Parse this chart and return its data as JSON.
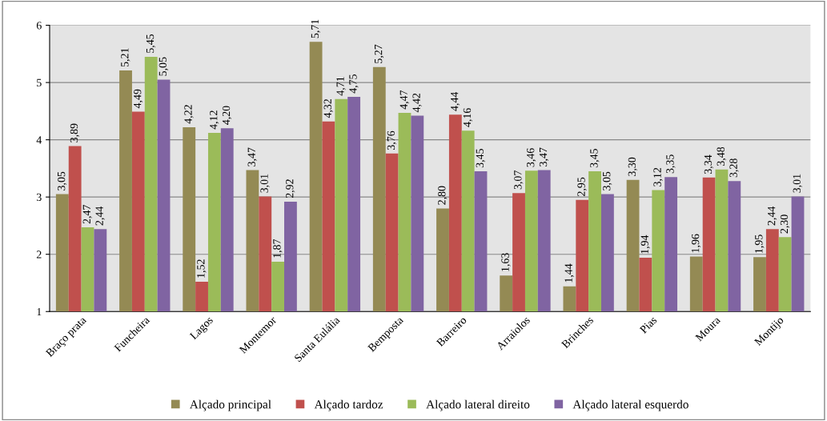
{
  "chart_data": {
    "type": "bar",
    "categories": [
      "Braço prata",
      "Funcheira",
      "Lagos",
      "Montemor",
      "Santa Eulália",
      "Bemposta",
      "Barreiro",
      "Arraiolos",
      "Brinches",
      "Pias",
      "Moura",
      "Montijo"
    ],
    "series": [
      {
        "name": "Alçado principal",
        "color": "#948a54",
        "values": [
          3.05,
          5.21,
          4.22,
          3.47,
          5.71,
          5.27,
          2.8,
          1.63,
          1.44,
          3.3,
          1.96,
          1.95
        ],
        "value_labels": [
          "3,05",
          "5,21",
          "4,22",
          "3,47",
          "5,71",
          "5,27",
          "2,80",
          "1,63",
          "1,44",
          "3,30",
          "1,96",
          "1,95"
        ]
      },
      {
        "name": "Alçado tardoz",
        "color": "#c0504d",
        "values": [
          3.89,
          4.49,
          1.52,
          3.01,
          4.32,
          3.76,
          4.44,
          3.07,
          2.95,
          1.94,
          3.34,
          2.44
        ],
        "value_labels": [
          "3,89",
          "4,49",
          "1,52",
          "3,01",
          "4,32",
          "3,76",
          "4,44",
          "3,07",
          "2,95",
          "1,94",
          "3,34",
          "2,44"
        ]
      },
      {
        "name": "Alçado lateral direito",
        "color": "#9bbb59",
        "values": [
          2.47,
          5.45,
          4.12,
          1.87,
          4.71,
          4.47,
          4.16,
          3.46,
          3.45,
          3.12,
          3.48,
          2.3
        ],
        "value_labels": [
          "2,47",
          "5,45",
          "4,12",
          "1,87",
          "4,71",
          "4,47",
          "4,16",
          "3,46",
          "3,45",
          "3,12",
          "3,48",
          "2,30"
        ]
      },
      {
        "name": "Alçado lateral esquerdo",
        "color": "#8064a2",
        "values": [
          2.44,
          5.05,
          4.2,
          2.92,
          4.75,
          4.42,
          3.45,
          3.47,
          3.05,
          3.35,
          3.28,
          3.01
        ],
        "value_labels": [
          "2,44",
          "5,05",
          "4,20",
          "2,92",
          "4,75",
          "4,42",
          "3,45",
          "3,47",
          "3,05",
          "3,35",
          "3,28",
          "3,01"
        ]
      }
    ],
    "ylim": [
      1,
      6
    ],
    "yticks": [
      1,
      2,
      3,
      4,
      5,
      6
    ],
    "grid": "y",
    "legend": "bottom"
  }
}
